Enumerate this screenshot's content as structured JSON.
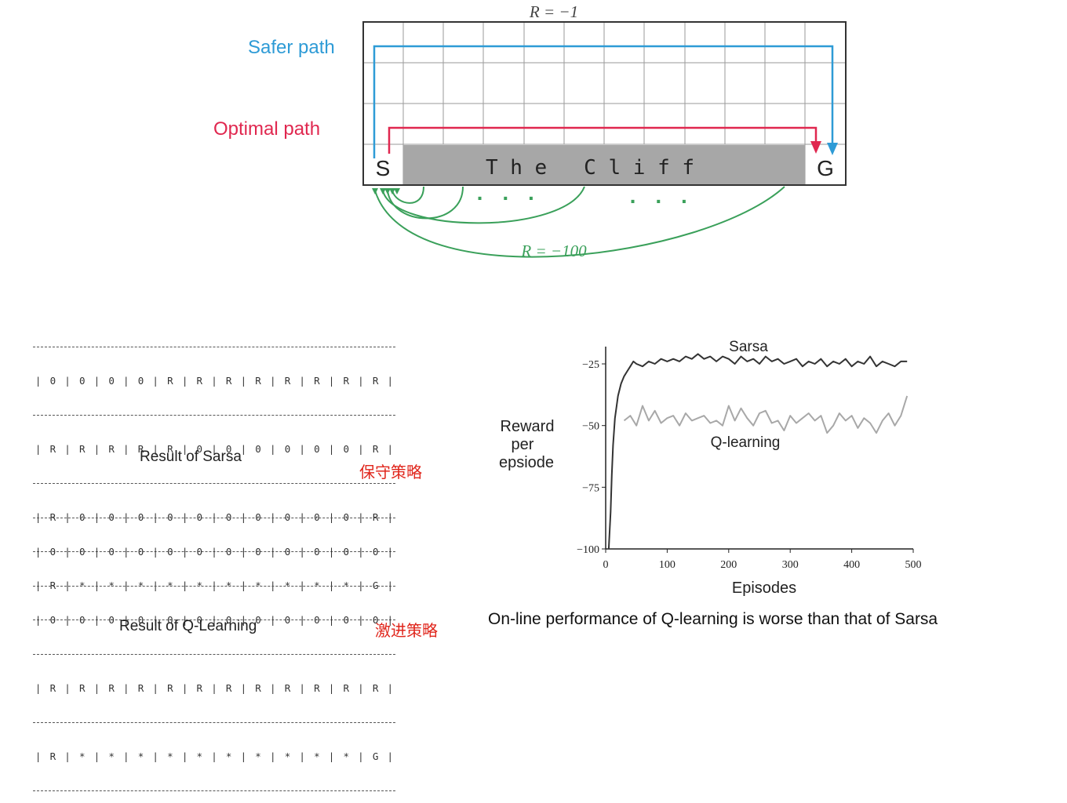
{
  "diagram": {
    "reward_top": "R = −1",
    "reward_cliff": "R = −100",
    "safer_path": "Safer path",
    "optimal_path": "Optimal path",
    "start": "S",
    "goal": "G",
    "cliff": "T h e   C l i f f",
    "dots_left": "·   ·   ·",
    "dots_right": "·   ·   ·",
    "colors": {
      "safer": "#2e9bd6",
      "optimal": "#e0274f",
      "fall": "#3aa05a",
      "cliff": "#a7a7a7"
    }
  },
  "sarsa": {
    "rows": [
      [
        "0",
        "0",
        "0",
        "0",
        "R",
        "R",
        "R",
        "R",
        "R",
        "R",
        "R",
        "R"
      ],
      [
        "R",
        "R",
        "R",
        "R",
        "R",
        "0",
        "0",
        "0",
        "0",
        "0",
        "0",
        "R"
      ],
      [
        "R",
        "0",
        "0",
        "0",
        "0",
        "0",
        "0",
        "0",
        "0",
        "0",
        "0",
        "R"
      ],
      [
        "R",
        "*",
        "*",
        "*",
        "*",
        "*",
        "*",
        "*",
        "*",
        "*",
        "*",
        "G"
      ]
    ],
    "caption": "Result of Sarsa",
    "strategy": "保守策略"
  },
  "qlearning": {
    "rows": [
      [
        "0",
        "0",
        "0",
        "0",
        "0",
        "0",
        "0",
        "0",
        "0",
        "0",
        "0",
        "0"
      ],
      [
        "0",
        "0",
        "0",
        "0",
        "0",
        "0",
        "0",
        "0",
        "0",
        "0",
        "0",
        "0"
      ],
      [
        "R",
        "R",
        "R",
        "R",
        "R",
        "R",
        "R",
        "R",
        "R",
        "R",
        "R",
        "R"
      ],
      [
        "R",
        "*",
        "*",
        "*",
        "*",
        "*",
        "*",
        "*",
        "*",
        "*",
        "*",
        "G"
      ]
    ],
    "caption": "Result of Q-Learning",
    "strategy": "激进策略"
  },
  "chart_data": {
    "type": "line",
    "xlabel": "Episodes",
    "ylabel": [
      "Reward",
      "per",
      "epsiode"
    ],
    "xlim": [
      0,
      500
    ],
    "ylim": [
      -100,
      -18
    ],
    "xticks": [
      0,
      100,
      200,
      300,
      400,
      500
    ],
    "yticks": [
      -25,
      -50,
      -75,
      -100
    ],
    "series": [
      {
        "name": "Sarsa",
        "color": "#333333",
        "x": [
          5,
          8,
          10,
          12,
          15,
          20,
          25,
          30,
          35,
          40,
          45,
          50,
          60,
          70,
          80,
          90,
          100,
          110,
          120,
          130,
          140,
          150,
          160,
          170,
          180,
          190,
          200,
          210,
          220,
          230,
          240,
          250,
          260,
          270,
          280,
          290,
          300,
          310,
          320,
          330,
          340,
          350,
          360,
          370,
          380,
          390,
          400,
          410,
          420,
          430,
          440,
          450,
          460,
          470,
          480,
          490
        ],
        "y": [
          -100,
          -85,
          -70,
          -58,
          -47,
          -38,
          -33,
          -30,
          -28,
          -26,
          -24,
          -25,
          -26,
          -24,
          -25,
          -23,
          -24,
          -23,
          -24,
          -22,
          -23,
          -21,
          -23,
          -22,
          -24,
          -22,
          -23,
          -25,
          -22,
          -24,
          -23,
          -25,
          -22,
          -24,
          -23,
          -25,
          -24,
          -23,
          -26,
          -24,
          -25,
          -23,
          -26,
          -24,
          -25,
          -23,
          -26,
          -24,
          -25,
          -22,
          -26,
          -24,
          -25,
          -26,
          -24,
          -24
        ]
      },
      {
        "name": "Q-learning",
        "color": "#a8a8a8",
        "x": [
          30,
          40,
          50,
          60,
          70,
          80,
          90,
          100,
          110,
          120,
          130,
          140,
          150,
          160,
          170,
          180,
          190,
          200,
          210,
          220,
          230,
          240,
          250,
          260,
          270,
          280,
          290,
          300,
          310,
          320,
          330,
          340,
          350,
          360,
          370,
          380,
          390,
          400,
          410,
          420,
          430,
          440,
          450,
          460,
          470,
          480,
          490
        ],
        "y": [
          -48,
          -46,
          -50,
          -42,
          -48,
          -44,
          -49,
          -47,
          -46,
          -50,
          -45,
          -48,
          -47,
          -46,
          -49,
          -48,
          -50,
          -42,
          -48,
          -43,
          -47,
          -50,
          -45,
          -44,
          -49,
          -48,
          -52,
          -46,
          -49,
          -47,
          -45,
          -48,
          -46,
          -53,
          -50,
          -45,
          -48,
          -46,
          -51,
          -47,
          -49,
          -53,
          -48,
          -45,
          -50,
          -46,
          -38
        ]
      }
    ]
  },
  "bottom_caption": "On-line performance of Q-learning is worse than that of Sarsa"
}
